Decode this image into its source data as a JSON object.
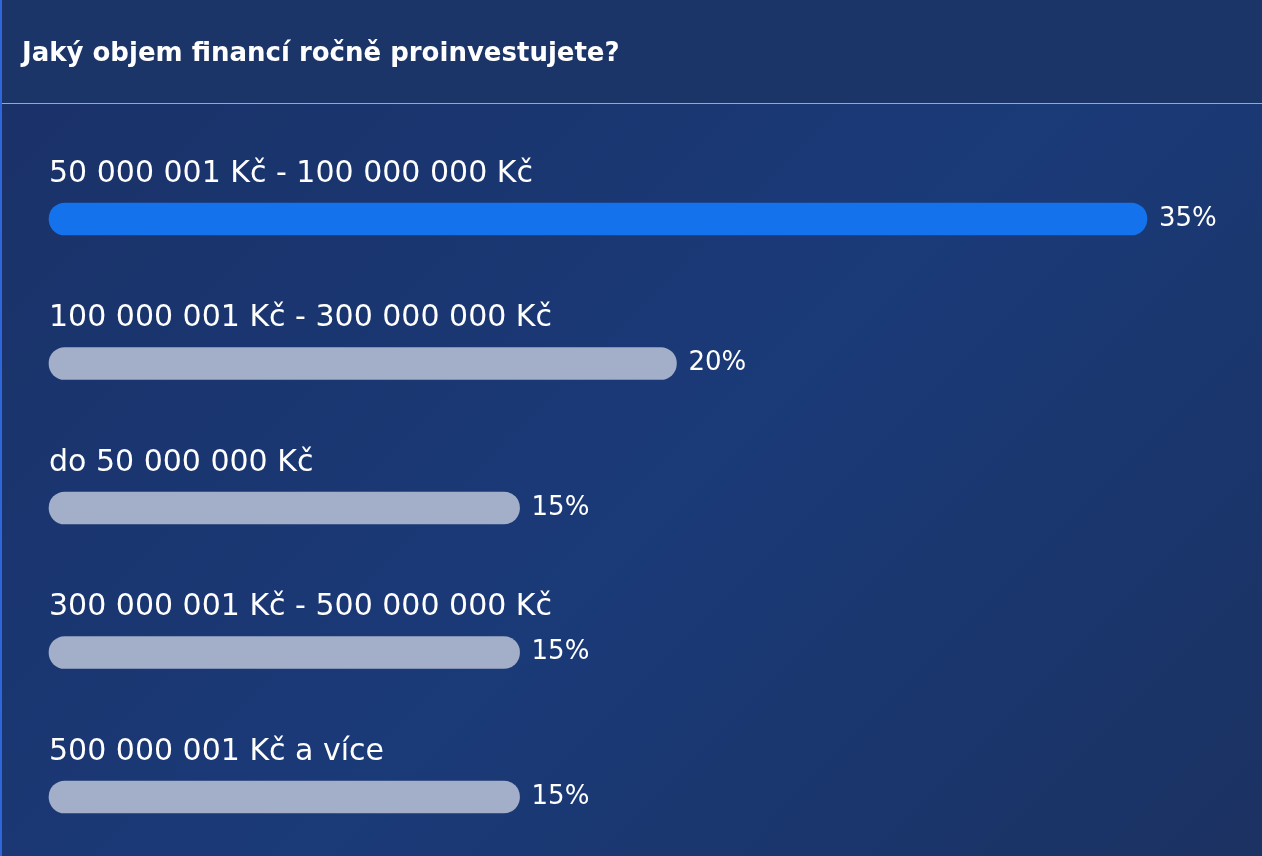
{
  "chart_data": {
    "type": "bar",
    "title": "Jaký objem financí ročně proinvestujete?",
    "orientation": "horizontal",
    "categories": [
      "50 000 001 Kč - 100 000 000 Kč",
      "100 000 001 Kč - 300 000 000 Kč",
      "do 50 000 000 Kč",
      "300 000 001 Kč - 500 000 000 Kč",
      "500 000 001 Kč a více"
    ],
    "values": [
      35,
      20,
      15,
      15,
      15
    ],
    "colors": [
      "#1472ec",
      "#a3aec8",
      "#a3aec8",
      "#a3aec8",
      "#a3aec8"
    ],
    "value_labels": [
      "35%",
      "20%",
      "15%",
      "15%",
      "15%"
    ]
  }
}
